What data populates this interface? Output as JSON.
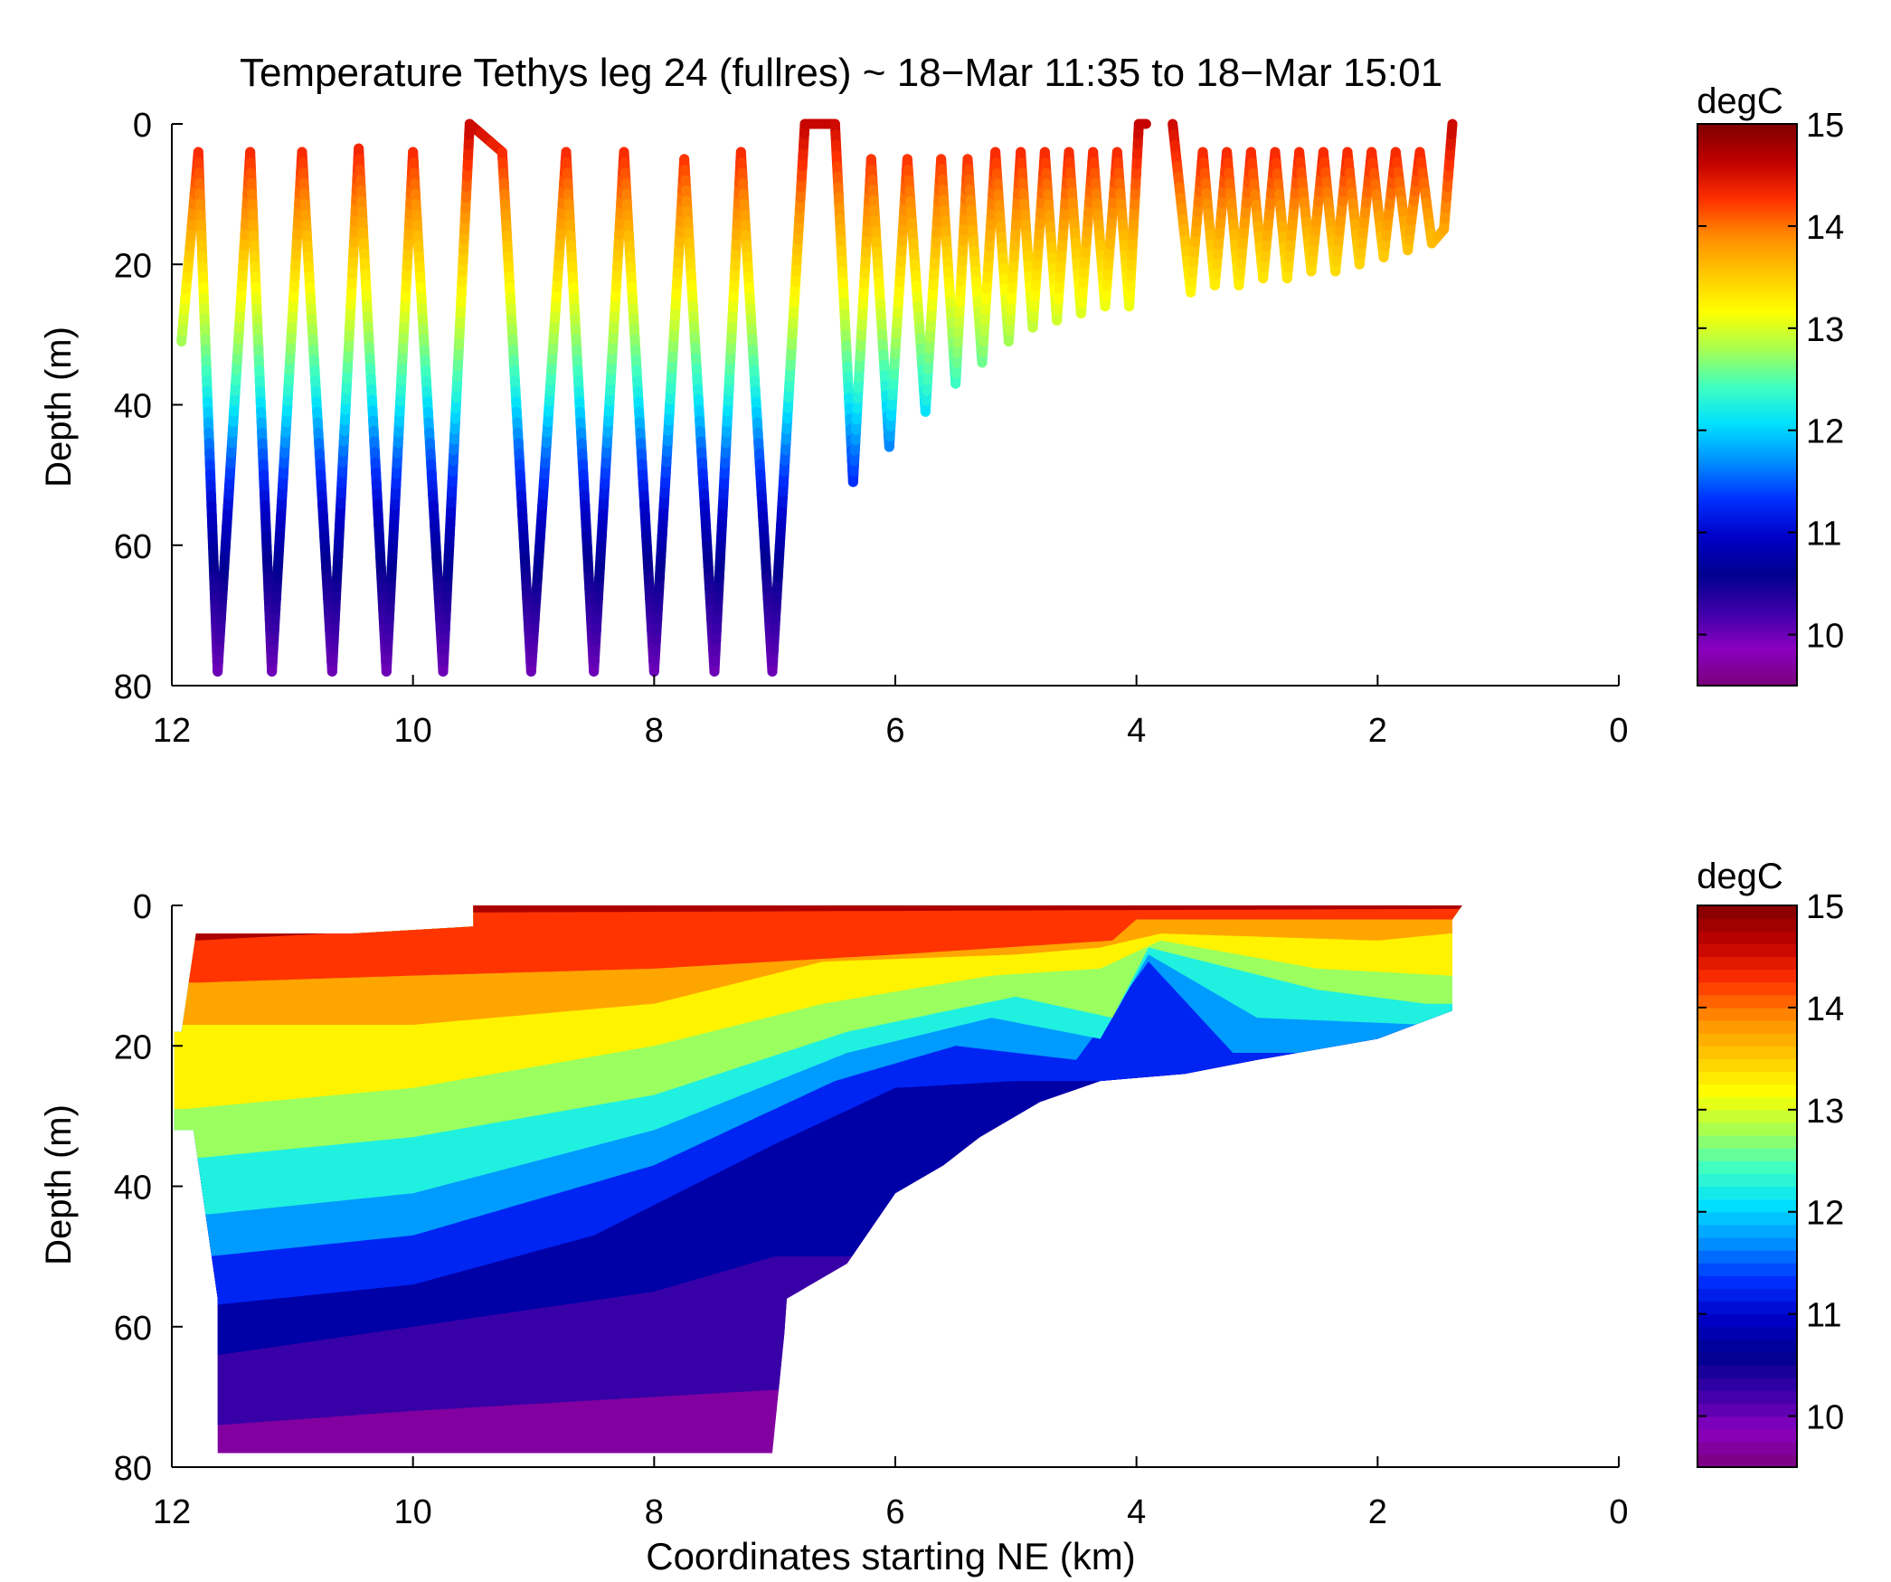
{
  "figure_title": "Temperature Tethys leg 24 (fullres) ~ 18−Mar 11:35 to 18−Mar 15:01",
  "colormap": [
    "#7a007a",
    "#8a00c0",
    "#3b00a8",
    "#000090",
    "#0000c8",
    "#0030ff",
    "#0090ff",
    "#00e0ff",
    "#40ffc0",
    "#a8ff50",
    "#ffff00",
    "#ffc800",
    "#ff8c00",
    "#ff3000",
    "#c00000",
    "#800000"
  ],
  "chart_data": [
    {
      "type": "scatter",
      "title": "Temperature Tethys leg 24 (fullres) ~ 18−Mar 11:35 to 18−Mar 15:01",
      "xlabel": "",
      "ylabel": "Depth (m)",
      "xlim": [
        12,
        0
      ],
      "ylim": [
        80,
        0
      ],
      "xticks": [
        "12",
        "10",
        "8",
        "6",
        "4",
        "2",
        "0"
      ],
      "yticks": [
        "0",
        "20",
        "40",
        "60",
        "80"
      ],
      "colorbar": {
        "label": "degC",
        "range": [
          9.5,
          15
        ],
        "ticks": [
          "15",
          "14",
          "13",
          "12",
          "11",
          "10"
        ]
      },
      "profile_turns": [
        {
          "x": 11.92,
          "depth": 31
        },
        {
          "x": 11.78,
          "depth": 4
        },
        {
          "x": 11.62,
          "depth": 78
        },
        {
          "x": 11.35,
          "depth": 4
        },
        {
          "x": 11.17,
          "depth": 78
        },
        {
          "x": 10.92,
          "depth": 4
        },
        {
          "x": 10.67,
          "depth": 78
        },
        {
          "x": 10.45,
          "depth": 3.5
        },
        {
          "x": 10.22,
          "depth": 78
        },
        {
          "x": 10.0,
          "depth": 4
        },
        {
          "x": 9.75,
          "depth": 78
        },
        {
          "x": 9.53,
          "depth": 0
        },
        {
          "x": 9.26,
          "depth": 4
        },
        {
          "x": 9.02,
          "depth": 78
        },
        {
          "x": 8.73,
          "depth": 4
        },
        {
          "x": 8.5,
          "depth": 78
        },
        {
          "x": 8.25,
          "depth": 4
        },
        {
          "x": 8.0,
          "depth": 78
        },
        {
          "x": 7.75,
          "depth": 5
        },
        {
          "x": 7.5,
          "depth": 78
        },
        {
          "x": 7.28,
          "depth": 4
        },
        {
          "x": 7.02,
          "depth": 78
        },
        {
          "x": 6.75,
          "depth": 0
        },
        {
          "x": 6.5,
          "depth": 0
        },
        {
          "x": 6.35,
          "depth": 51
        },
        {
          "x": 6.2,
          "depth": 5
        },
        {
          "x": 6.05,
          "depth": 46
        },
        {
          "x": 5.9,
          "depth": 5
        },
        {
          "x": 5.75,
          "depth": 41
        },
        {
          "x": 5.62,
          "depth": 5
        },
        {
          "x": 5.5,
          "depth": 37
        },
        {
          "x": 5.4,
          "depth": 5
        },
        {
          "x": 5.28,
          "depth": 34
        },
        {
          "x": 5.17,
          "depth": 4
        },
        {
          "x": 5.06,
          "depth": 31
        },
        {
          "x": 4.96,
          "depth": 4
        },
        {
          "x": 4.86,
          "depth": 29
        },
        {
          "x": 4.76,
          "depth": 4
        },
        {
          "x": 4.66,
          "depth": 28
        },
        {
          "x": 4.56,
          "depth": 4
        },
        {
          "x": 4.46,
          "depth": 27
        },
        {
          "x": 4.36,
          "depth": 4
        },
        {
          "x": 4.26,
          "depth": 26
        },
        {
          "x": 4.16,
          "depth": 4
        },
        {
          "x": 4.06,
          "depth": 26
        },
        {
          "x": 3.98,
          "depth": 0
        },
        {
          "x": 3.92,
          "depth": 0
        }
      ],
      "profile_turns_2": [
        {
          "x": 3.7,
          "depth": 0
        },
        {
          "x": 3.55,
          "depth": 24
        },
        {
          "x": 3.45,
          "depth": 4
        },
        {
          "x": 3.35,
          "depth": 23
        },
        {
          "x": 3.25,
          "depth": 4
        },
        {
          "x": 3.15,
          "depth": 23
        },
        {
          "x": 3.05,
          "depth": 4
        },
        {
          "x": 2.95,
          "depth": 22
        },
        {
          "x": 2.85,
          "depth": 4
        },
        {
          "x": 2.75,
          "depth": 22
        },
        {
          "x": 2.65,
          "depth": 4
        },
        {
          "x": 2.55,
          "depth": 21
        },
        {
          "x": 2.45,
          "depth": 4
        },
        {
          "x": 2.35,
          "depth": 21
        },
        {
          "x": 2.25,
          "depth": 4
        },
        {
          "x": 2.15,
          "depth": 20
        },
        {
          "x": 2.05,
          "depth": 4
        },
        {
          "x": 1.95,
          "depth": 19
        },
        {
          "x": 1.85,
          "depth": 4
        },
        {
          "x": 1.75,
          "depth": 18
        },
        {
          "x": 1.65,
          "depth": 4
        },
        {
          "x": 1.55,
          "depth": 17
        },
        {
          "x": 1.45,
          "depth": 15
        },
        {
          "x": 1.38,
          "depth": 0
        }
      ],
      "temperature_profile": [
        {
          "depth": 0,
          "temp": 14.6
        },
        {
          "depth": 8,
          "temp": 14.1
        },
        {
          "depth": 15,
          "temp": 13.7
        },
        {
          "depth": 22,
          "temp": 13.3
        },
        {
          "depth": 30,
          "temp": 12.8
        },
        {
          "depth": 38,
          "temp": 12.3
        },
        {
          "depth": 46,
          "temp": 11.6
        },
        {
          "depth": 55,
          "temp": 11.0
        },
        {
          "depth": 65,
          "temp": 10.5
        },
        {
          "depth": 80,
          "temp": 9.9
        }
      ]
    },
    {
      "type": "heatmap",
      "title": "",
      "xlabel": "Coordinates starting NE (km)",
      "ylabel": "Depth (m)",
      "xlim": [
        12,
        0
      ],
      "ylim": [
        80,
        0
      ],
      "xticks": [
        "12",
        "10",
        "8",
        "6",
        "4",
        "2",
        "0"
      ],
      "yticks": [
        "0",
        "20",
        "40",
        "60",
        "80"
      ],
      "colorbar": {
        "label": "degC",
        "range": [
          9.5,
          15
        ],
        "ticks": [
          "15",
          "14",
          "13",
          "12",
          "11",
          "10"
        ]
      },
      "data_extent": [
        {
          "x": 11.92,
          "depth": 18
        },
        {
          "x": 11.8,
          "depth": 4
        },
        {
          "x": 10.5,
          "depth": 4
        },
        {
          "x": 9.5,
          "depth": 3
        },
        {
          "x": 9.5,
          "depth": 0
        },
        {
          "x": 1.3,
          "depth": 0
        },
        {
          "x": 1.38,
          "depth": 2
        },
        {
          "x": 1.38,
          "depth": 15
        },
        {
          "x": 2.0,
          "depth": 19
        },
        {
          "x": 3.0,
          "depth": 22
        },
        {
          "x": 3.6,
          "depth": 24
        },
        {
          "x": 4.3,
          "depth": 25
        },
        {
          "x": 4.8,
          "depth": 28
        },
        {
          "x": 5.0,
          "depth": 30
        },
        {
          "x": 5.3,
          "depth": 33
        },
        {
          "x": 5.6,
          "depth": 37
        },
        {
          "x": 6.0,
          "depth": 41
        },
        {
          "x": 6.2,
          "depth": 46
        },
        {
          "x": 6.4,
          "depth": 51
        },
        {
          "x": 6.9,
          "depth": 56
        },
        {
          "x": 6.92,
          "depth": 61
        },
        {
          "x": 7.02,
          "depth": 78
        },
        {
          "x": 11.62,
          "depth": 78
        },
        {
          "x": 11.62,
          "depth": 56
        },
        {
          "x": 11.82,
          "depth": 32
        },
        {
          "x": 11.98,
          "depth": 32
        },
        {
          "x": 11.98,
          "depth": 18
        }
      ],
      "isotherm_depths": [
        {
          "temp": 14.5,
          "x": [
            11.8,
            9.6,
            9.5,
            1.4
          ],
          "depth": [
            5,
            3,
            1,
            0.5
          ]
        },
        {
          "temp": 14.0,
          "x": [
            11.8,
            10.0,
            8.0,
            6.0,
            4.2,
            4.0,
            2.0,
            1.4
          ],
          "depth": [
            11,
            10,
            9,
            7,
            5,
            2,
            2,
            2
          ]
        },
        {
          "temp": 13.5,
          "x": [
            11.8,
            10.0,
            8.0,
            6.6,
            5.0,
            4.3,
            3.8,
            2.0,
            1.4
          ],
          "depth": [
            17,
            17,
            14,
            8,
            7,
            6,
            4,
            5,
            4
          ]
        },
        {
          "temp": 13.0,
          "x": [
            11.9,
            10.0,
            8.0,
            6.6,
            5.2,
            4.3,
            3.8,
            2.5,
            1.4
          ],
          "depth": [
            29,
            26,
            20,
            14,
            10,
            9,
            5,
            9,
            10
          ]
        },
        {
          "temp": 12.5,
          "x": [
            11.8,
            10.0,
            8.0,
            6.4,
            5.0,
            4.2,
            3.9,
            2.5,
            1.6
          ],
          "depth": [
            36,
            33,
            27,
            18,
            13,
            16,
            6,
            12,
            14
          ]
        },
        {
          "temp": 12.0,
          "x": [
            11.7,
            10.0,
            8.0,
            6.4,
            5.2,
            4.3,
            3.9,
            3.0,
            1.6
          ],
          "depth": [
            44,
            41,
            32,
            21,
            16,
            19,
            7,
            16,
            17
          ]
        },
        {
          "temp": 11.5,
          "x": [
            11.7,
            10.0,
            8.0,
            6.5,
            5.5,
            4.5,
            3.9,
            3.2
          ],
          "depth": [
            50,
            47,
            37,
            25,
            20,
            22,
            8,
            21
          ]
        },
        {
          "temp": 11.0,
          "x": [
            11.7,
            10.0,
            8.5,
            7.0,
            6.0,
            5.0
          ],
          "depth": [
            57,
            54,
            47,
            34,
            26,
            25
          ]
        },
        {
          "temp": 10.5,
          "x": [
            11.6,
            10.0,
            8.0,
            7.0
          ],
          "depth": [
            64,
            60,
            55,
            50
          ]
        },
        {
          "temp": 10.0,
          "x": [
            11.6,
            10.0,
            8.0,
            7.0
          ],
          "depth": [
            74,
            72,
            70,
            69
          ]
        }
      ]
    }
  ]
}
